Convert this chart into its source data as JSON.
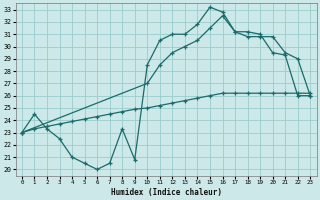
{
  "xlabel": "Humidex (Indice chaleur)",
  "bg_color": "#cce8e8",
  "grid_color": "#99cccc",
  "line_color": "#1a6b6b",
  "xlim": [
    -0.5,
    23.5
  ],
  "ylim": [
    19.5,
    33.5
  ],
  "xticks": [
    0,
    1,
    2,
    3,
    4,
    5,
    6,
    7,
    8,
    9,
    10,
    11,
    12,
    13,
    14,
    15,
    16,
    17,
    18,
    19,
    20,
    21,
    22,
    23
  ],
  "yticks": [
    20,
    21,
    22,
    23,
    24,
    25,
    26,
    27,
    28,
    29,
    30,
    31,
    32,
    33
  ],
  "line1_x": [
    0,
    1,
    2,
    3,
    4,
    5,
    6,
    7,
    8,
    9,
    10,
    11,
    12,
    13,
    14,
    15,
    16,
    17,
    18,
    19,
    20,
    21,
    22,
    23
  ],
  "line1_y": [
    23.0,
    24.5,
    23.3,
    22.5,
    21.0,
    20.5,
    20.0,
    20.5,
    23.3,
    20.8,
    28.5,
    30.5,
    31.0,
    31.0,
    31.8,
    33.2,
    32.8,
    31.2,
    31.2,
    31.0,
    29.5,
    29.3,
    26.0,
    26.0
  ],
  "line2_x": [
    0,
    10,
    11,
    12,
    13,
    14,
    15,
    16,
    17,
    18,
    19,
    20,
    21,
    22,
    23
  ],
  "line2_y": [
    23.0,
    27.0,
    28.5,
    29.5,
    30.0,
    30.5,
    31.5,
    32.5,
    31.2,
    30.8,
    30.8,
    30.8,
    29.5,
    29.0,
    26.0
  ],
  "line3_x": [
    0,
    1,
    2,
    3,
    4,
    5,
    6,
    7,
    8,
    9,
    10,
    11,
    12,
    13,
    14,
    15,
    16,
    17,
    18,
    19,
    20,
    21,
    22,
    23
  ],
  "line3_y": [
    23.0,
    23.3,
    23.5,
    23.7,
    23.9,
    24.1,
    24.3,
    24.5,
    24.7,
    24.9,
    25.0,
    25.2,
    25.4,
    25.6,
    25.8,
    26.0,
    26.2,
    26.2,
    26.2,
    26.2,
    26.2,
    26.2,
    26.2,
    26.2
  ]
}
